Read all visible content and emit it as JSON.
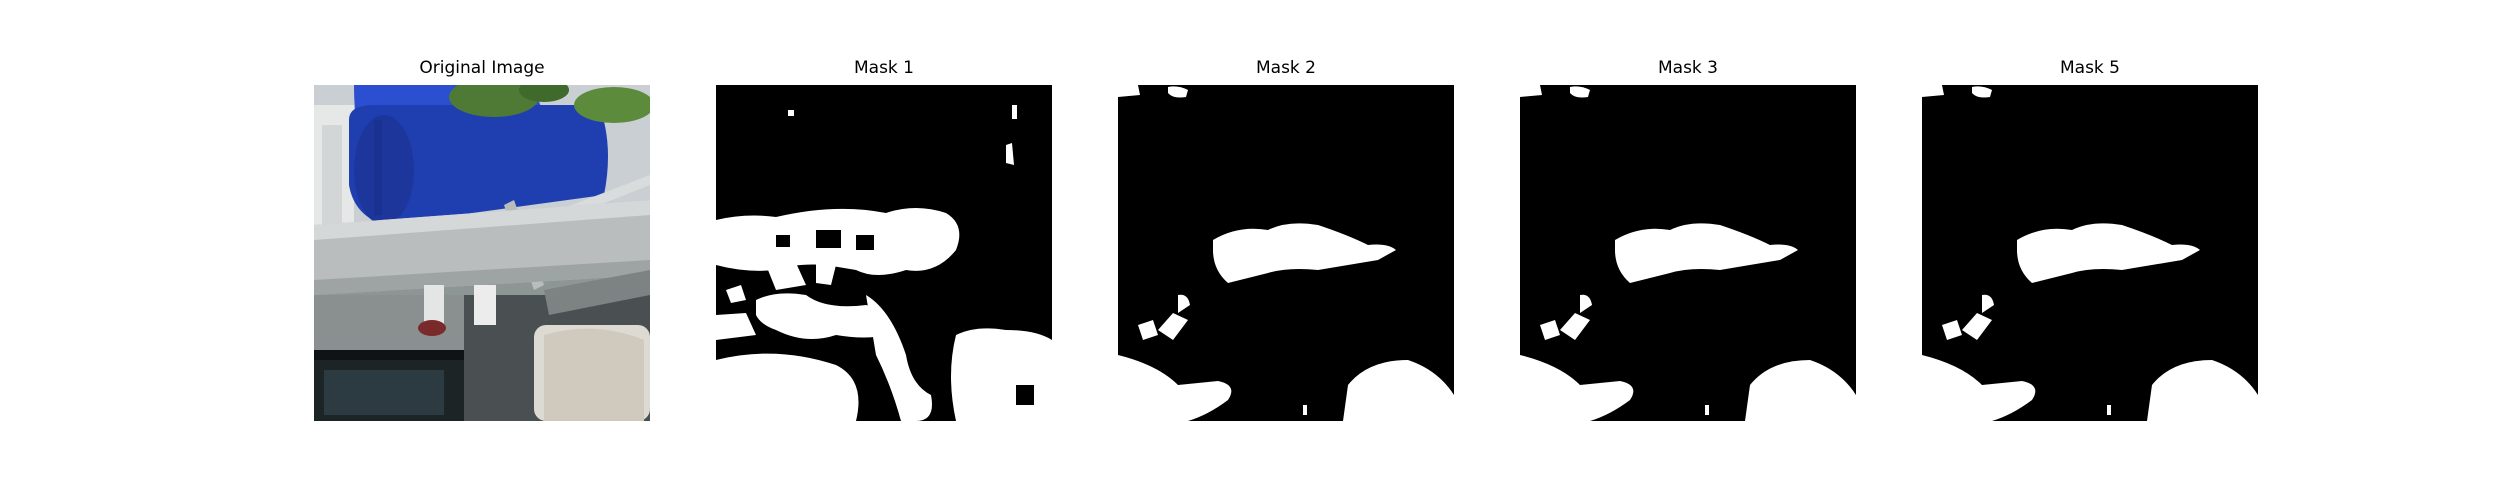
{
  "figure": {
    "panels": [
      {
        "title": "Original Image"
      },
      {
        "title": "Mask 1"
      },
      {
        "title": "Mask 2"
      },
      {
        "title": "Mask 3"
      },
      {
        "title": "Mask 5"
      }
    ]
  },
  "colors": {
    "background": "#ffffff",
    "mask_background": "#000000",
    "mask_foreground": "#ffffff",
    "barrel_blue": "#1f3fb0",
    "rail_gray": "#b9bdbd",
    "foliage_green": "#4e7a35"
  }
}
